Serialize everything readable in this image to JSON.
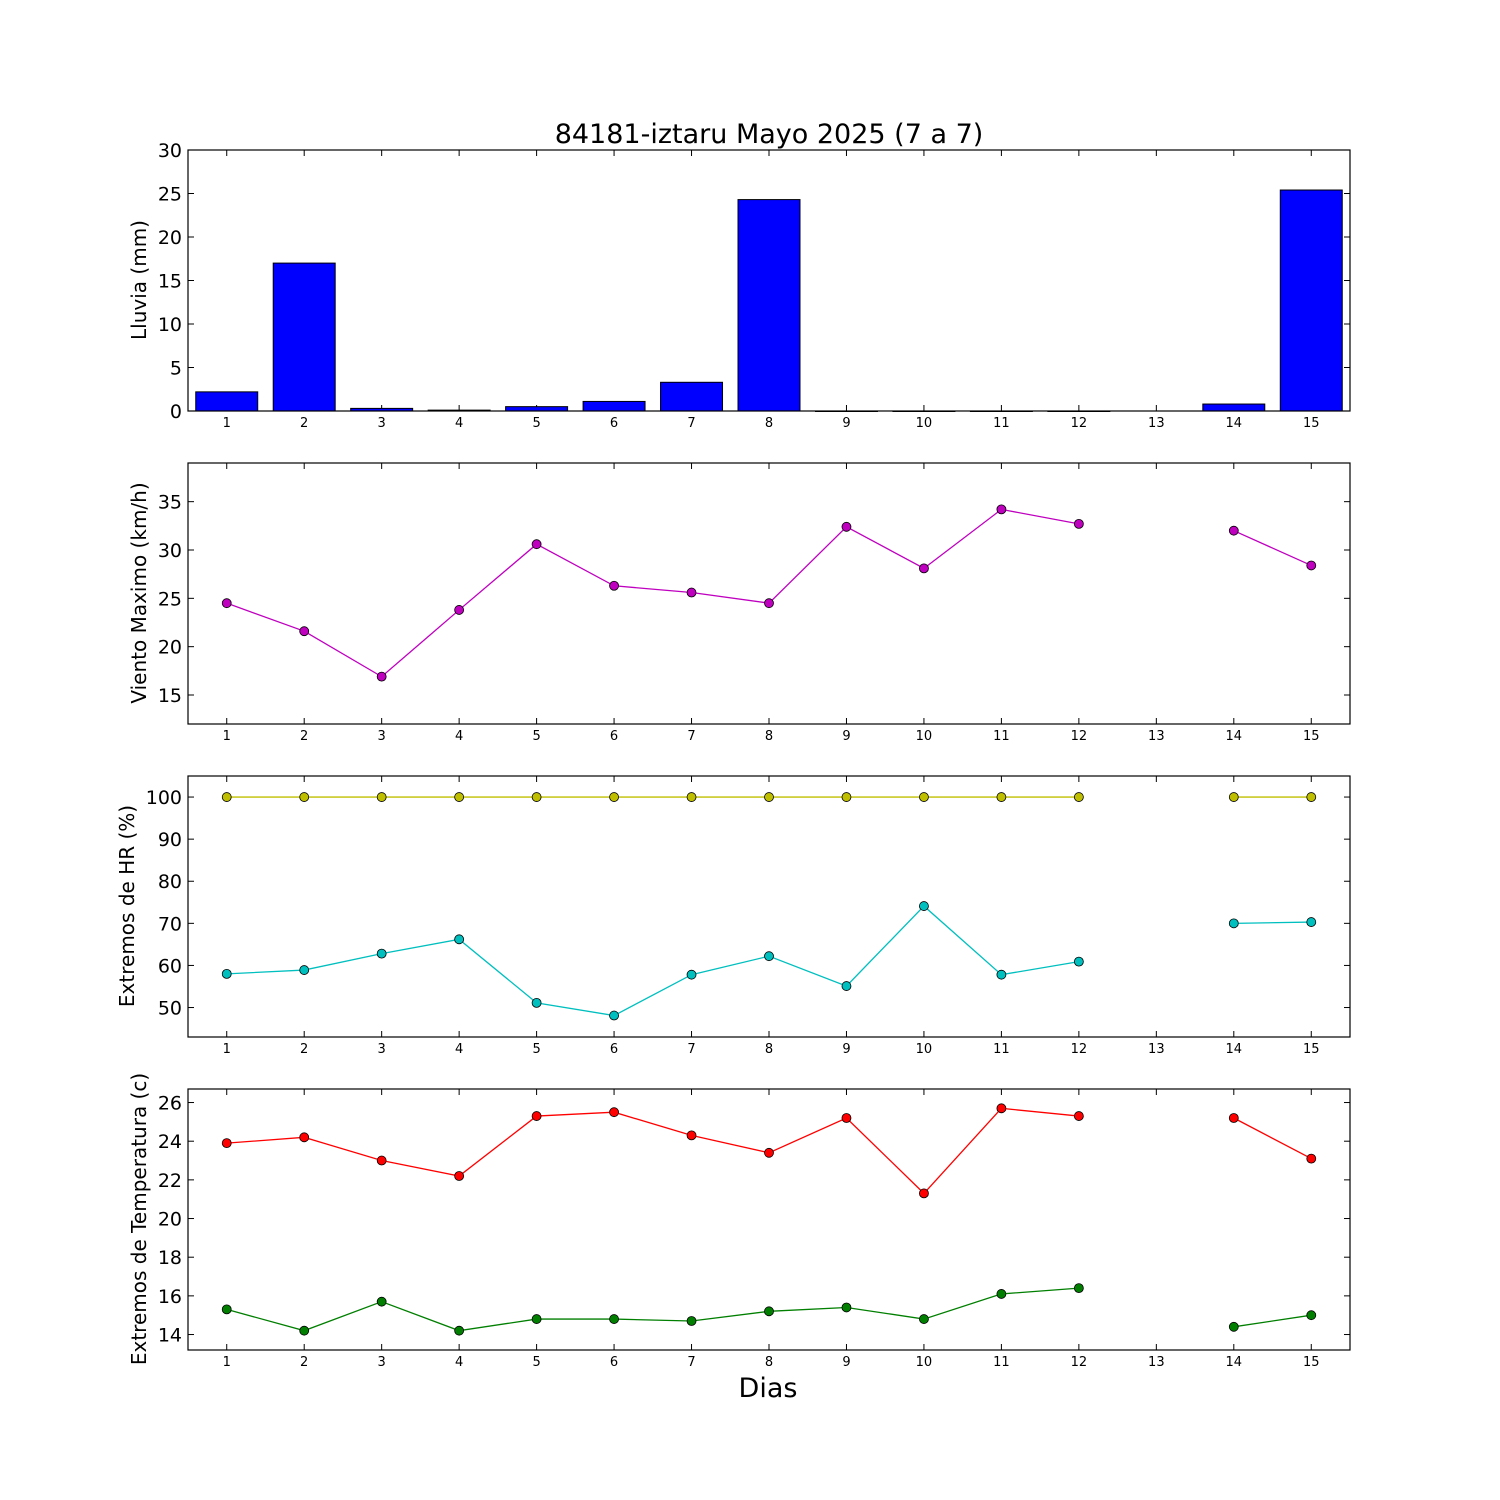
{
  "figure": {
    "title": "84181-iztaru Mayo 2025  (7 a 7)",
    "xlabel": "Dias"
  },
  "chart_data": [
    {
      "type": "bar",
      "ylabel": "Lluvia (mm)",
      "ylim": [
        0,
        30
      ],
      "yticks": [
        0,
        5,
        10,
        15,
        20,
        25,
        30
      ],
      "categories": [
        1,
        2,
        3,
        4,
        5,
        6,
        7,
        8,
        9,
        10,
        11,
        12,
        13,
        14,
        15
      ],
      "values": [
        2.2,
        17.0,
        0.3,
        0.1,
        0.5,
        1.1,
        3.3,
        24.3,
        0,
        0,
        0,
        0,
        null,
        0.8,
        25.4
      ],
      "color": "#0000ff"
    },
    {
      "type": "line",
      "ylabel": "Viento Maximo (km/h)",
      "ylim": [
        12,
        39
      ],
      "yticks": [
        15,
        20,
        25,
        30,
        35
      ],
      "x": [
        1,
        2,
        3,
        4,
        5,
        6,
        7,
        8,
        9,
        10,
        11,
        12,
        13,
        14,
        15
      ],
      "series": [
        {
          "color": "#bf00bf",
          "values": [
            24.5,
            21.6,
            16.9,
            23.8,
            30.6,
            26.3,
            25.6,
            24.5,
            32.4,
            28.1,
            34.2,
            32.7,
            null,
            32.0,
            28.4
          ]
        }
      ]
    },
    {
      "type": "line",
      "ylabel": "Extremos de HR (%)",
      "ylim": [
        43,
        105
      ],
      "yticks": [
        50,
        60,
        70,
        80,
        90,
        100
      ],
      "x": [
        1,
        2,
        3,
        4,
        5,
        6,
        7,
        8,
        9,
        10,
        11,
        12,
        13,
        14,
        15
      ],
      "series": [
        {
          "color": "#bfbf00",
          "values": [
            100,
            100,
            100,
            100,
            100,
            100,
            100,
            100,
            100,
            100,
            100,
            100,
            null,
            100,
            100
          ]
        },
        {
          "color": "#00bfbf",
          "values": [
            58.0,
            58.9,
            62.8,
            66.2,
            51.1,
            48.1,
            57.8,
            62.2,
            55.1,
            74.1,
            57.8,
            60.9,
            null,
            70.0,
            70.3
          ]
        }
      ]
    },
    {
      "type": "line",
      "ylabel": "Extremos de Temperatura (c)",
      "ylim": [
        13.2,
        26.7
      ],
      "yticks": [
        14,
        16,
        18,
        20,
        22,
        24,
        26
      ],
      "x": [
        1,
        2,
        3,
        4,
        5,
        6,
        7,
        8,
        9,
        10,
        11,
        12,
        13,
        14,
        15
      ],
      "series": [
        {
          "color": "#ff0000",
          "values": [
            23.9,
            24.2,
            23.0,
            22.2,
            25.3,
            25.5,
            24.3,
            23.4,
            25.2,
            21.3,
            25.7,
            25.3,
            null,
            25.2,
            23.1
          ]
        },
        {
          "color": "#007f00",
          "values": [
            15.3,
            14.2,
            15.7,
            14.2,
            14.8,
            14.8,
            14.7,
            15.2,
            15.4,
            14.8,
            16.1,
            16.4,
            null,
            14.4,
            15.0
          ]
        }
      ]
    }
  ]
}
